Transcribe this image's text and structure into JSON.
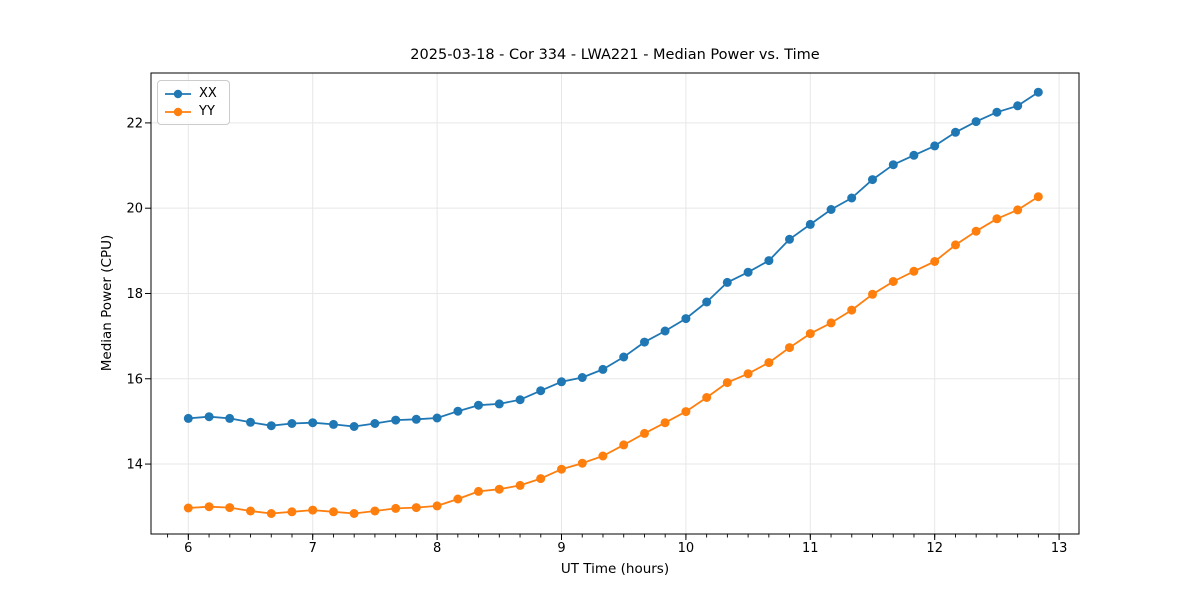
{
  "chart_data": {
    "type": "line",
    "title": "2025-03-18 - Cor 334 - LWA221 - Median Power vs. Time",
    "xlabel": "UT Time (hours)",
    "ylabel": "Median Power (CPU)",
    "xlim": [
      5.7,
      13.16
    ],
    "ylim": [
      12.36,
      23.17
    ],
    "x_ticks": [
      6,
      7,
      8,
      9,
      10,
      11,
      12,
      13
    ],
    "y_ticks": [
      14,
      16,
      18,
      20,
      22
    ],
    "x_minor_tick_step": 0.166667,
    "grid": true,
    "legend_position": "upper left",
    "x": [
      6.0,
      6.167,
      6.333,
      6.5,
      6.667,
      6.833,
      7.0,
      7.167,
      7.333,
      7.5,
      7.667,
      7.833,
      8.0,
      8.167,
      8.333,
      8.5,
      8.667,
      8.833,
      9.0,
      9.167,
      9.333,
      9.5,
      9.667,
      9.833,
      10.0,
      10.167,
      10.333,
      10.5,
      10.667,
      10.833,
      11.0,
      11.167,
      11.333,
      11.5,
      11.667,
      11.833,
      12.0,
      12.167,
      12.333,
      12.5,
      12.667,
      12.833
    ],
    "series": [
      {
        "name": "XX",
        "color": "#1f77b4",
        "values": [
          15.07,
          15.11,
          15.07,
          14.98,
          14.9,
          14.95,
          14.97,
          14.93,
          14.88,
          14.95,
          15.03,
          15.05,
          15.08,
          15.24,
          15.38,
          15.41,
          15.51,
          15.72,
          15.93,
          16.03,
          16.22,
          16.51,
          16.86,
          17.12,
          17.41,
          17.8,
          18.26,
          18.5,
          18.77,
          19.27,
          19.62,
          19.97,
          20.24,
          20.67,
          21.02,
          21.24,
          21.46,
          21.78,
          22.03,
          22.25,
          22.4,
          22.72
        ]
      },
      {
        "name": "YY",
        "color": "#ff7f0e",
        "values": [
          12.97,
          13.0,
          12.98,
          12.9,
          12.84,
          12.88,
          12.92,
          12.88,
          12.84,
          12.9,
          12.96,
          12.98,
          13.02,
          13.18,
          13.36,
          13.41,
          13.5,
          13.66,
          13.88,
          14.02,
          14.19,
          14.45,
          14.72,
          14.97,
          15.23,
          15.56,
          15.91,
          16.12,
          16.38,
          16.73,
          17.06,
          17.31,
          17.61,
          17.98,
          18.28,
          18.52,
          18.75,
          19.14,
          19.46,
          19.75,
          19.96,
          20.27
        ]
      }
    ]
  }
}
